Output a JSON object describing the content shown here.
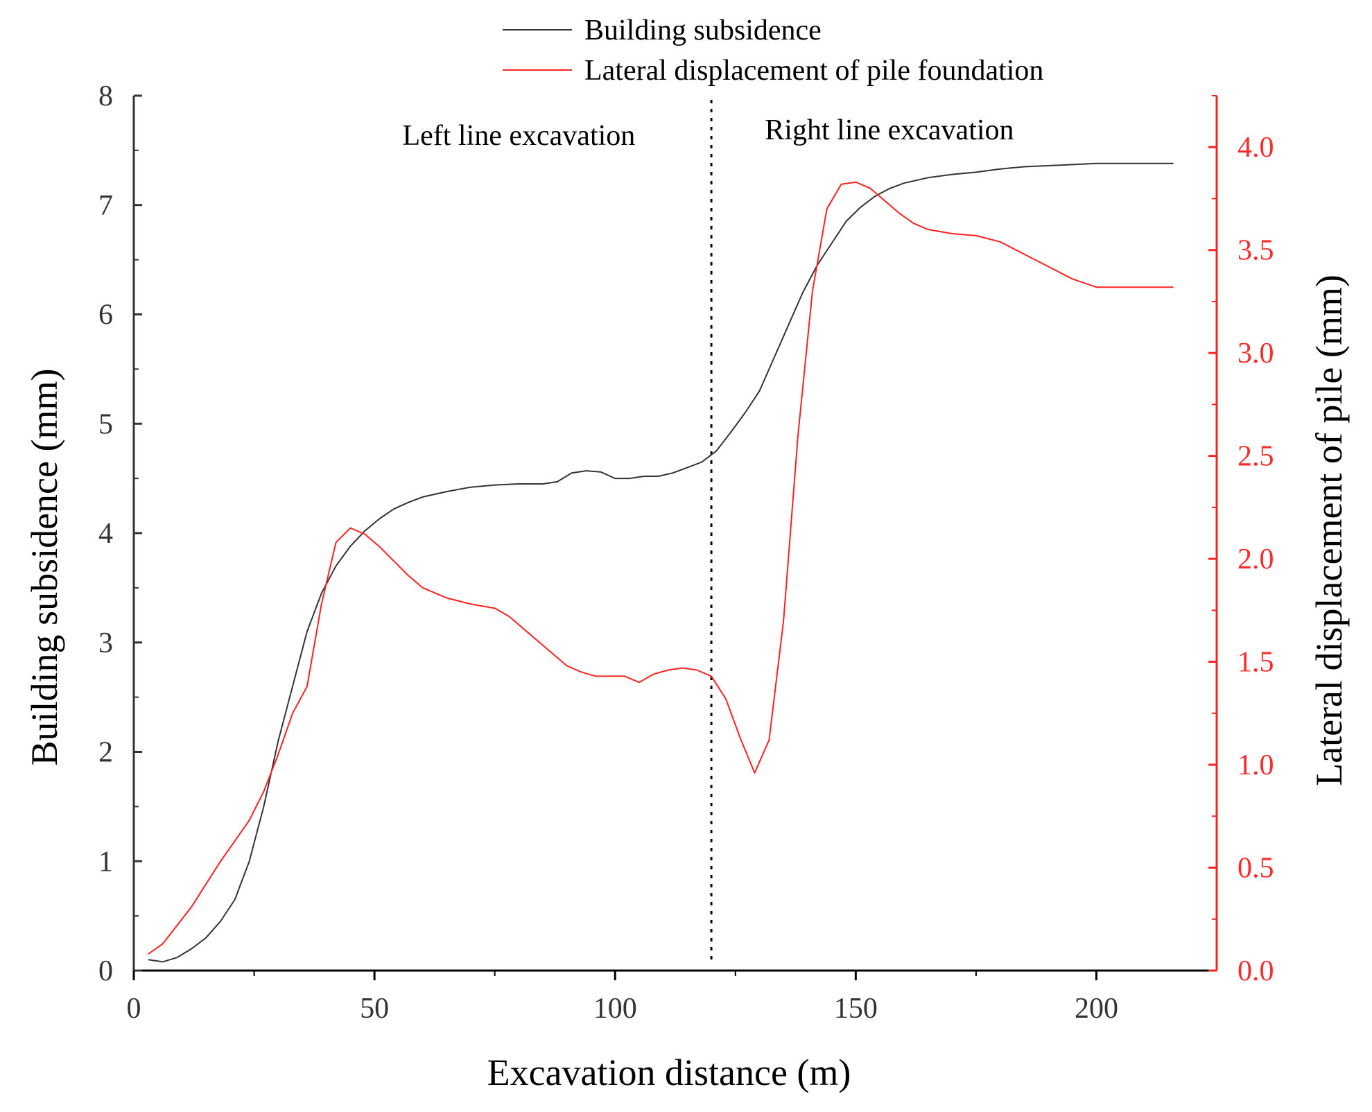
{
  "chart_data": {
    "type": "line",
    "title": "",
    "xlabel": "Excavation distance (m)",
    "ylabel_left": "Building subsidence (mm)",
    "ylabel_right": "Lateral displacement of pile (mm)",
    "xlim": [
      0,
      225
    ],
    "ylim_left": [
      0,
      8
    ],
    "ylim_right": [
      0,
      4.25
    ],
    "x_ticks": [
      0,
      50,
      100,
      150,
      200
    ],
    "x_ticks_labels": [
      "0",
      "50",
      "100",
      "150",
      "200"
    ],
    "y_left_ticks": [
      0,
      1,
      2,
      3,
      4,
      5,
      6,
      7,
      8
    ],
    "y_left_ticks_labels": [
      "0",
      "1",
      "2",
      "3",
      "4",
      "5",
      "6",
      "7",
      "8"
    ],
    "y_right_ticks": [
      0,
      0.5,
      1,
      1.5,
      2,
      2.5,
      3,
      3.5,
      4
    ],
    "y_right_ticks_labels": [
      "0.0",
      "0.5",
      "1.0",
      "1.5",
      "2.0",
      "2.5",
      "3.0",
      "3.5",
      "4.0"
    ],
    "divider_x": 120,
    "annotations": [
      {
        "text": "Left line excavation",
        "x": 80,
        "y": 7.55,
        "axis": "left"
      },
      {
        "text": "Right line excavation",
        "x": 157,
        "y": 7.6,
        "axis": "left"
      }
    ],
    "legend_position": "top-center",
    "colors": {
      "subsidence": "#333333",
      "lateral": "#ff2020",
      "left_axis": "#333333",
      "right_axis": "#ff2020"
    },
    "series": [
      {
        "name": "Building subsidence",
        "axis": "left",
        "color": "#333333",
        "x": [
          3,
          6,
          9,
          12,
          15,
          18,
          21,
          24,
          27,
          30,
          33,
          36,
          39,
          42,
          45,
          48,
          51,
          54,
          57,
          60,
          65,
          70,
          75,
          80,
          85,
          88,
          91,
          94,
          97,
          100,
          103,
          106,
          109,
          112,
          115,
          118,
          121,
          124,
          127,
          130,
          133,
          136,
          139,
          142,
          145,
          148,
          151,
          154,
          157,
          160,
          165,
          170,
          175,
          180,
          185,
          190,
          195,
          200,
          205,
          210,
          216
        ],
        "values": [
          0.1,
          0.08,
          0.12,
          0.2,
          0.3,
          0.45,
          0.65,
          1.0,
          1.5,
          2.1,
          2.6,
          3.1,
          3.45,
          3.7,
          3.88,
          4.02,
          4.13,
          4.22,
          4.28,
          4.33,
          4.38,
          4.42,
          4.44,
          4.45,
          4.45,
          4.47,
          4.55,
          4.57,
          4.56,
          4.5,
          4.5,
          4.52,
          4.52,
          4.55,
          4.6,
          4.65,
          4.75,
          4.92,
          5.1,
          5.3,
          5.6,
          5.9,
          6.2,
          6.45,
          6.65,
          6.85,
          6.98,
          7.08,
          7.15,
          7.2,
          7.25,
          7.28,
          7.3,
          7.33,
          7.35,
          7.36,
          7.37,
          7.38,
          7.38,
          7.38,
          7.38
        ]
      },
      {
        "name": "Lateral displacement of pile foundation",
        "axis": "right",
        "color": "#ff2020",
        "x": [
          3,
          6,
          9,
          12,
          15,
          18,
          21,
          24,
          27,
          30,
          33,
          36,
          39,
          42,
          45,
          48,
          51,
          54,
          57,
          60,
          65,
          70,
          75,
          78,
          81,
          84,
          87,
          90,
          93,
          96,
          99,
          102,
          105,
          108,
          111,
          114,
          117,
          120,
          123,
          126,
          129,
          132,
          135,
          138,
          141,
          144,
          147,
          150,
          153,
          156,
          159,
          162,
          165,
          170,
          175,
          180,
          185,
          190,
          195,
          200,
          205,
          210,
          216
        ],
        "values": [
          0.08,
          0.13,
          0.22,
          0.31,
          0.42,
          0.53,
          0.63,
          0.73,
          0.87,
          1.05,
          1.25,
          1.38,
          1.78,
          2.08,
          2.15,
          2.12,
          2.06,
          1.99,
          1.92,
          1.86,
          1.81,
          1.78,
          1.76,
          1.72,
          1.66,
          1.6,
          1.54,
          1.48,
          1.45,
          1.43,
          1.43,
          1.43,
          1.4,
          1.44,
          1.46,
          1.47,
          1.46,
          1.43,
          1.32,
          1.13,
          0.96,
          1.12,
          1.7,
          2.6,
          3.3,
          3.7,
          3.82,
          3.83,
          3.8,
          3.74,
          3.68,
          3.63,
          3.6,
          3.58,
          3.57,
          3.54,
          3.48,
          3.42,
          3.36,
          3.32,
          3.32,
          3.32,
          3.32
        ]
      }
    ]
  }
}
